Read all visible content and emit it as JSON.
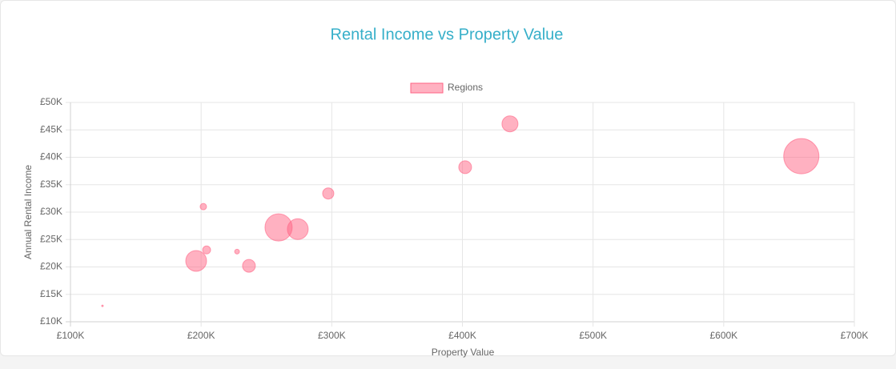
{
  "chart_data": {
    "type": "bubble",
    "title": "Rental Income vs Property Value",
    "xlabel": "Property Value",
    "ylabel": "Annual Rental Income",
    "xlim": [
      100000,
      700000
    ],
    "xticks": [
      {
        "value": 100000,
        "label": "£100K"
      },
      {
        "value": 200000,
        "label": "£200K"
      },
      {
        "value": 300000,
        "label": "£300K"
      },
      {
        "value": 400000,
        "label": "£400K"
      },
      {
        "value": 500000,
        "label": "£500K"
      },
      {
        "value": 600000,
        "label": "£600K"
      },
      {
        "value": 700000,
        "label": "£700K"
      }
    ],
    "ylim": [
      10000,
      50000
    ],
    "yticks": [
      {
        "value": 10000,
        "label": "£10K"
      },
      {
        "value": 15000,
        "label": "£15K"
      },
      {
        "value": 20000,
        "label": "£20K"
      },
      {
        "value": 25000,
        "label": "£25K"
      },
      {
        "value": 30000,
        "label": "£30K"
      },
      {
        "value": 35000,
        "label": "£35K"
      },
      {
        "value": 40000,
        "label": "£40K"
      },
      {
        "value": 45000,
        "label": "£45K"
      },
      {
        "value": 50000,
        "label": "£50K"
      }
    ],
    "grid": true,
    "legend": "top",
    "series": [
      {
        "name": "Regions",
        "color": "#ff6384",
        "x": [
          124500,
          196200,
          201700,
          204200,
          227500,
          236600,
          259300,
          274000,
          297300,
          402100,
          436400,
          659400
        ],
        "values": [
          12900,
          21100,
          31000,
          23100,
          22800,
          20200,
          27200,
          26900,
          33400,
          38200,
          46100,
          40200
        ],
        "sizes": [
          1,
          13,
          4,
          5,
          3,
          8,
          17,
          13,
          7,
          8,
          10,
          22
        ]
      }
    ]
  }
}
